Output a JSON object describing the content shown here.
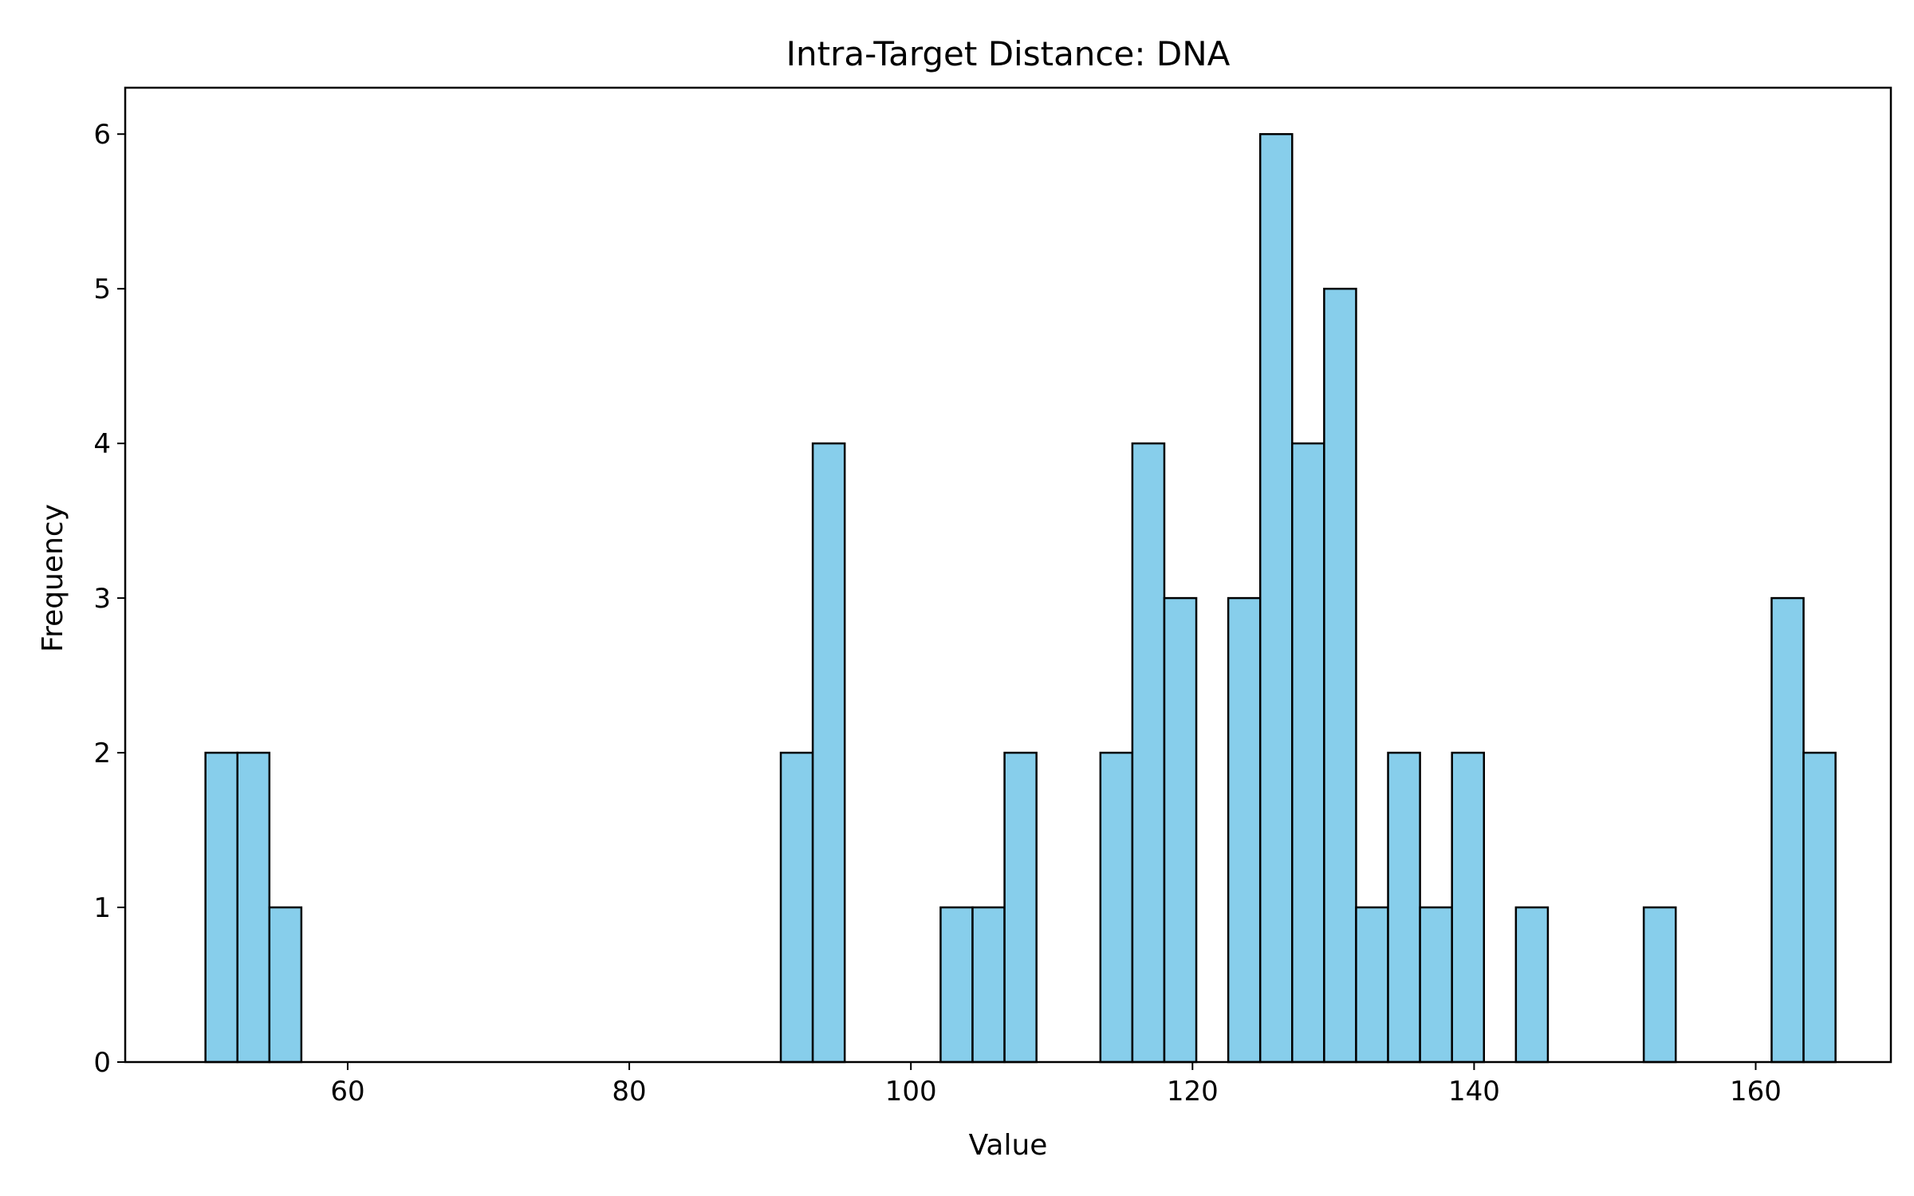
{
  "chart_data": {
    "type": "bar",
    "subtype": "histogram",
    "title": "Intra-Target Distance: DNA",
    "xlabel": "Value",
    "ylabel": "Frequency",
    "xlim": [
      44.2,
      169.6
    ],
    "ylim": [
      0,
      6.3
    ],
    "xticks": [
      60,
      80,
      100,
      120,
      140,
      160
    ],
    "yticks": [
      0,
      1,
      2,
      3,
      4,
      5,
      6
    ],
    "grid": false,
    "bar_color": "#87CEEB",
    "edge_color": "#000000",
    "bin_start": 49.9,
    "bin_width": 2.27,
    "counts": [
      2,
      2,
      1,
      0,
      0,
      0,
      0,
      0,
      0,
      0,
      0,
      0,
      0,
      0,
      0,
      0,
      0,
      0,
      2,
      4,
      0,
      0,
      0,
      1,
      1,
      2,
      0,
      0,
      2,
      4,
      3,
      0,
      3,
      6,
      4,
      5,
      1,
      2,
      1,
      2,
      0,
      1,
      0,
      0,
      0,
      1,
      0,
      0,
      0,
      3,
      2
    ]
  }
}
